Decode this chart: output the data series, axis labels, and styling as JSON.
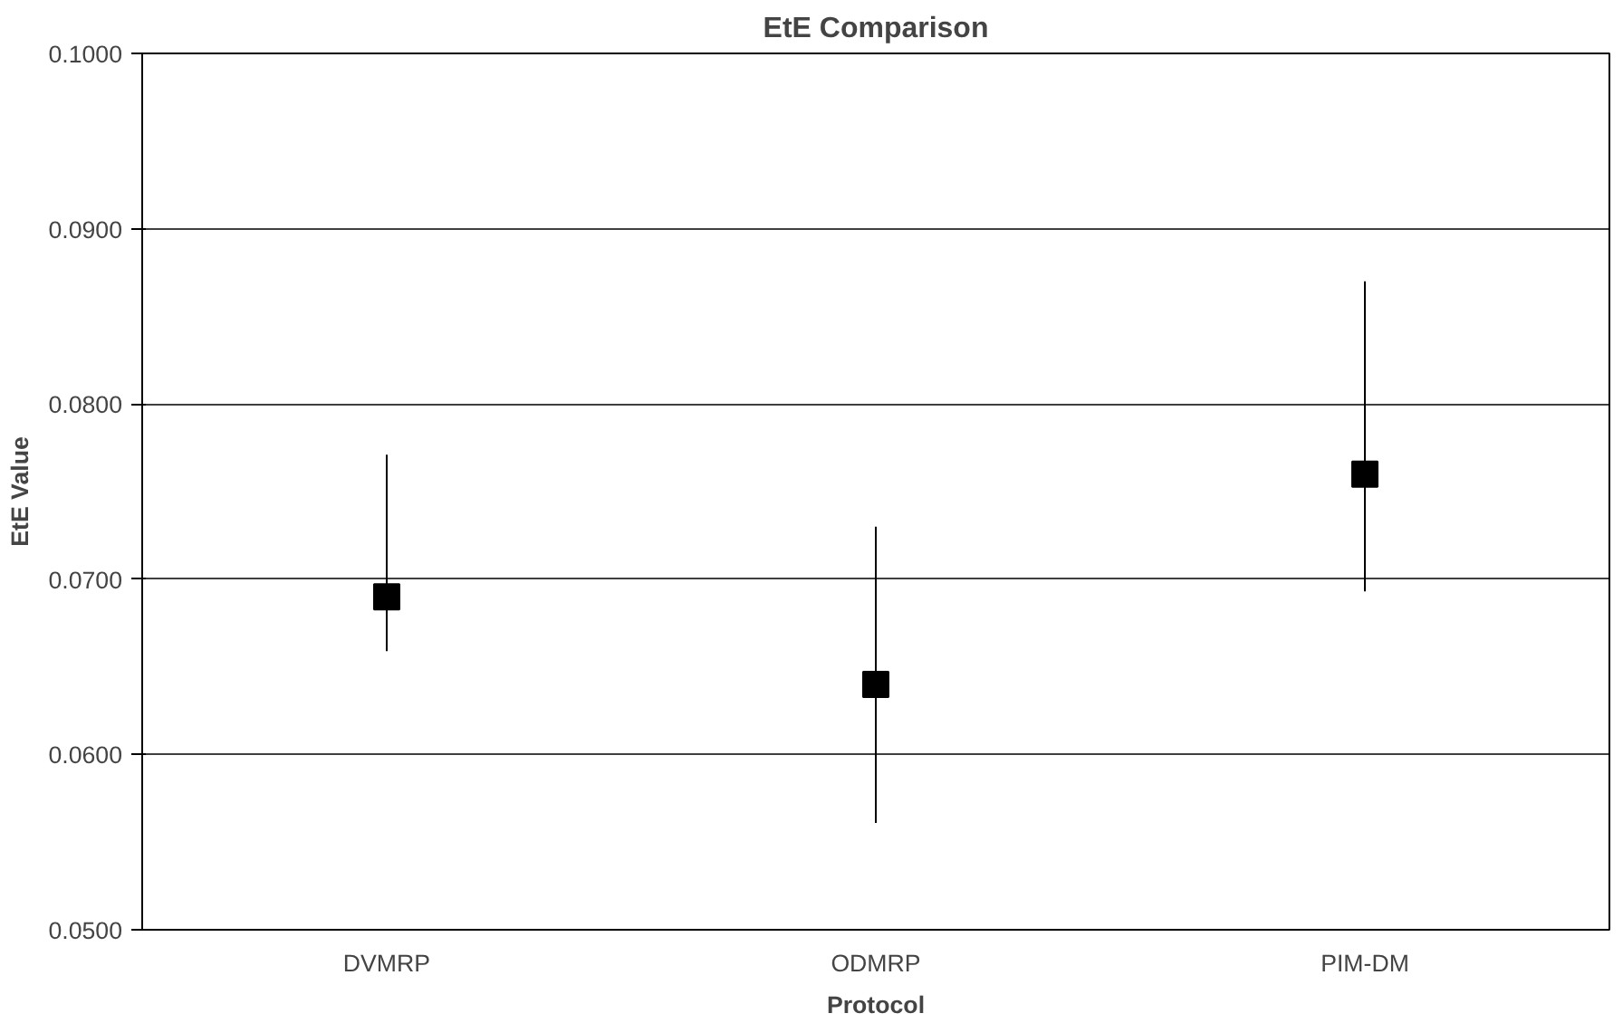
{
  "chart_data": {
    "type": "scatter",
    "title": "EtE Comparison",
    "xlabel": "Protocol",
    "ylabel": "EtE Value",
    "categories": [
      "DVMRP",
      "ODMRP",
      "PIM-DM"
    ],
    "series": [
      {
        "color": "#000000",
        "values": [
          0.069,
          0.064,
          0.076
        ],
        "errors": [
          [
            0.0659,
            0.0771
          ],
          [
            0.0561,
            0.073
          ],
          [
            0.0693,
            0.087
          ]
        ]
      }
    ],
    "ylim": [
      0.05,
      0.1
    ],
    "yticks": [
      {
        "value": 0.05,
        "label": "0.0500"
      },
      {
        "value": 0.06,
        "label": "0.0600"
      },
      {
        "value": 0.07,
        "label": "0.0700"
      },
      {
        "value": 0.08,
        "label": "0.0800"
      },
      {
        "value": 0.09,
        "label": "0.0900"
      },
      {
        "value": 0.1,
        "label": "0.1000"
      }
    ],
    "grid": "y",
    "marker": "square"
  }
}
